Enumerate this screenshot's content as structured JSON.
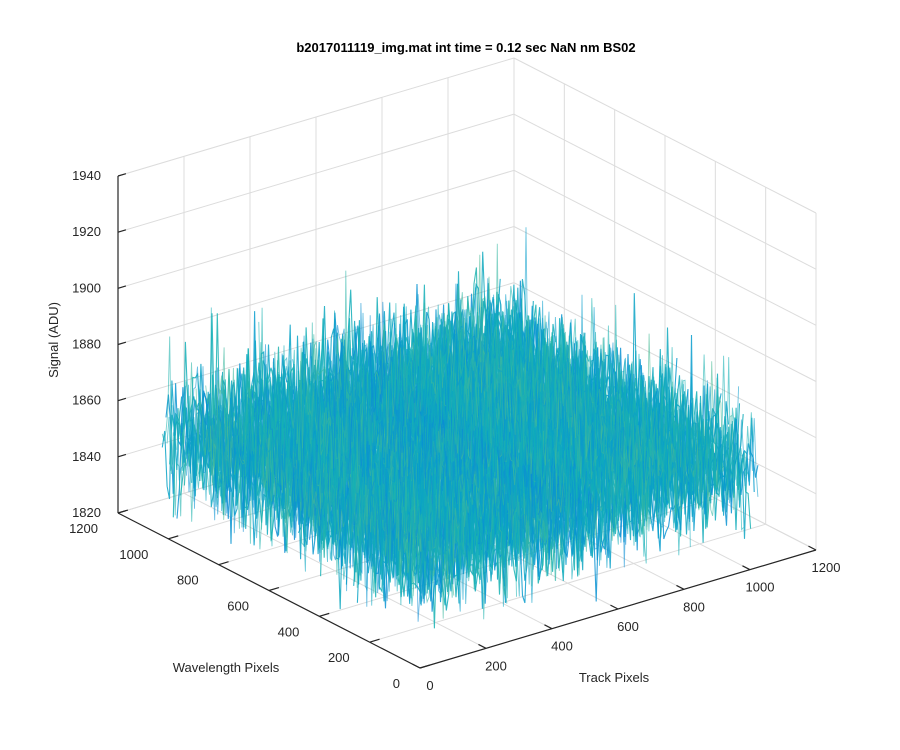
{
  "chart_data": {
    "type": "surface",
    "title": "b2017011119_img.mat int time = 0.12 sec  NaN nm BS02",
    "xlabel": "Track Pixels",
    "ylabel": "Wavelength Pixels",
    "zlabel": "Signal (ADU)",
    "xlim": [
      0,
      1200
    ],
    "ylim": [
      0,
      1200
    ],
    "zlim": [
      1820,
      1940
    ],
    "x_ticks": [
      "0",
      "200",
      "400",
      "600",
      "800",
      "1000",
      "1200"
    ],
    "y_ticks": [
      "0",
      "200",
      "400",
      "600",
      "800",
      "1000",
      "1200"
    ],
    "z_ticks": [
      "1820",
      "1840",
      "1860",
      "1880",
      "1900",
      "1920",
      "1940"
    ],
    "data_extent": {
      "x": [
        0,
        1024
      ],
      "y": [
        0,
        1024
      ]
    },
    "signal": {
      "baseline": 1856,
      "spread": 13,
      "min": 1825,
      "max": 1915
    },
    "colormap": "parula",
    "grid": true
  }
}
